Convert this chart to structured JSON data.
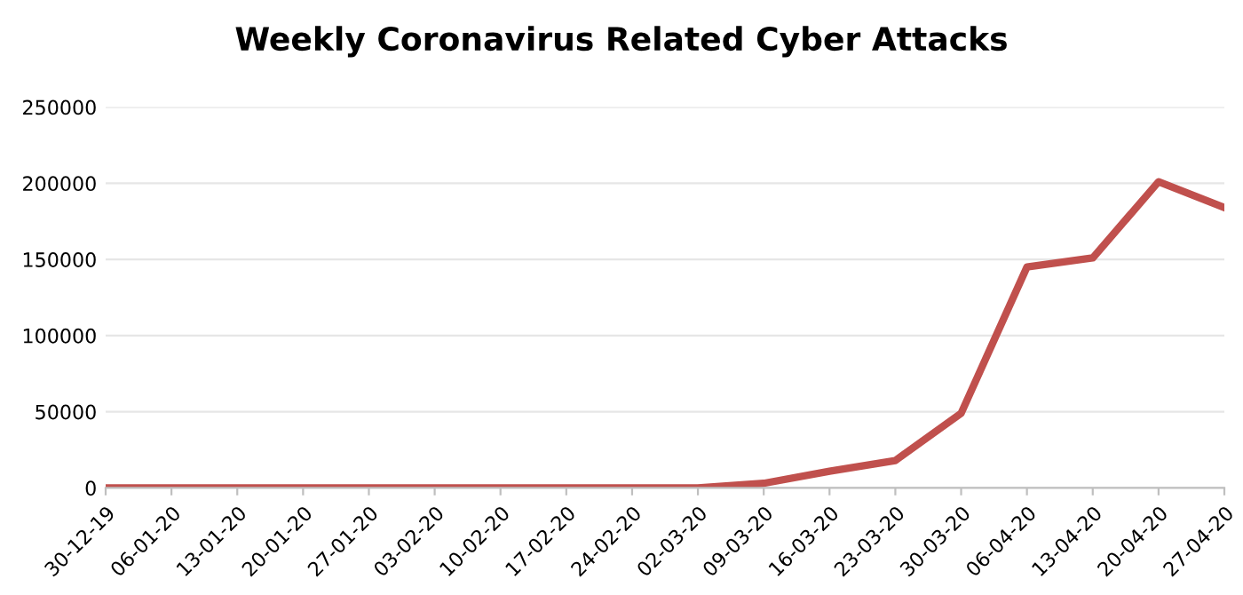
{
  "chart_data": {
    "type": "line",
    "title": "Weekly Coronavirus Related Cyber Attacks",
    "categories": [
      "30-12-19",
      "06-01-20",
      "13-01-20",
      "20-01-20",
      "27-01-20",
      "03-02-20",
      "10-02-20",
      "17-02-20",
      "24-02-20",
      "02-03-20",
      "09-03-20",
      "16-03-20",
      "23-03-20",
      "30-03-20",
      "06-04-20",
      "13-04-20",
      "20-04-20",
      "27-04-20"
    ],
    "series": [
      {
        "color": "#c0504d",
        "values": [
          0,
          0,
          0,
          0,
          0,
          0,
          0,
          0,
          0,
          0,
          3000,
          11000,
          18000,
          49000,
          145000,
          151000,
          201000,
          184000
        ]
      }
    ],
    "ylim": [
      0,
      250000
    ],
    "yticks": [
      0,
      50000,
      100000,
      150000,
      200000,
      250000
    ],
    "grid": "y",
    "legend": false,
    "marker": "none",
    "line_style": "solid"
  }
}
